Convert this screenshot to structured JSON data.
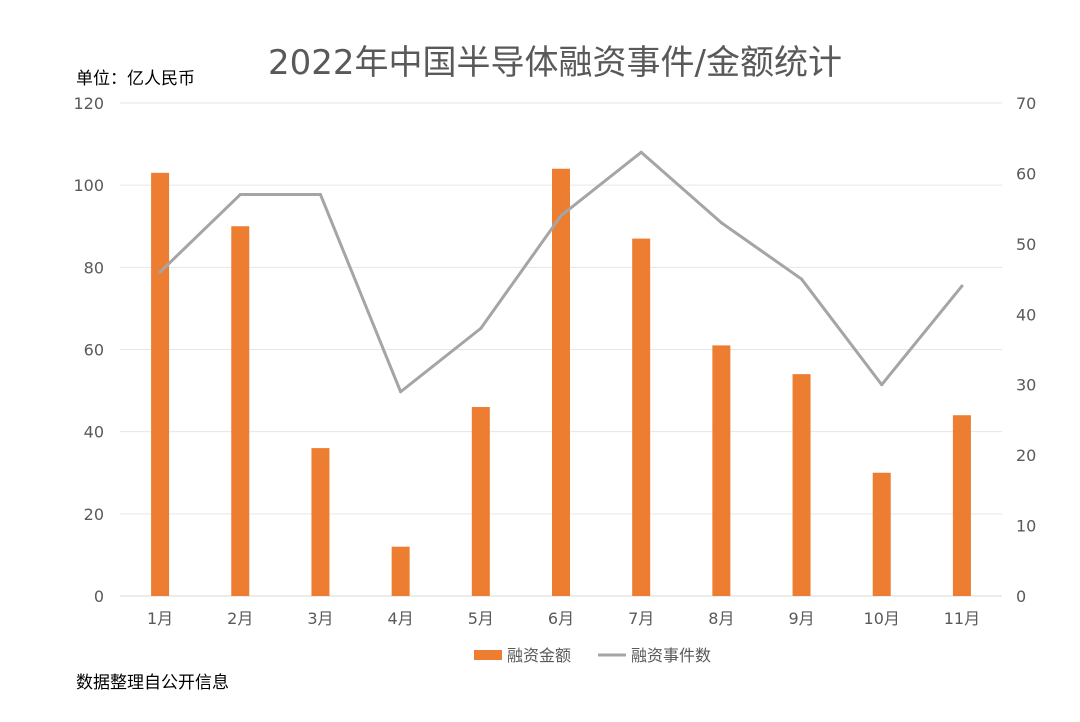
{
  "chart_data": {
    "type": "bar",
    "title": "2022年中国半导体融资事件/金额统计",
    "unit_label": "单位：亿人民币",
    "source_note": "数据整理自公开信息",
    "categories": [
      "1月",
      "2月",
      "3月",
      "4月",
      "5月",
      "6月",
      "7月",
      "8月",
      "9月",
      "10月",
      "11月"
    ],
    "series": [
      {
        "name": "融资金额",
        "type": "bar",
        "axis": "left",
        "color": "#ED7D31",
        "values": [
          103,
          90,
          36,
          12,
          46,
          104,
          87,
          61,
          54,
          30,
          44
        ]
      },
      {
        "name": "融资事件数",
        "type": "line",
        "axis": "right",
        "color": "#A5A5A5",
        "values": [
          46,
          57,
          57,
          29,
          38,
          54,
          63,
          53,
          45,
          30,
          44
        ]
      }
    ],
    "ylim_left": [
      0,
      120
    ],
    "yticks_left": [
      "0",
      "20",
      "40",
      "60",
      "80",
      "100",
      "120"
    ],
    "ylim_right": [
      0,
      70
    ],
    "yticks_right": [
      "0",
      "10",
      "20",
      "30",
      "40",
      "50",
      "60",
      "70"
    ],
    "grid": true,
    "legend_position": "bottom"
  }
}
